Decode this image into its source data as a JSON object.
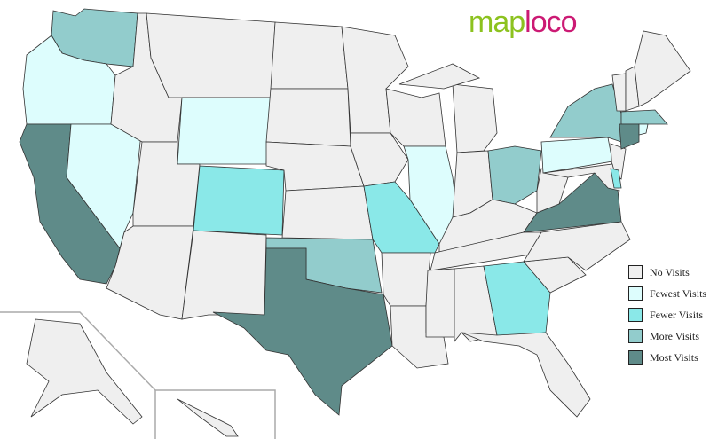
{
  "logo": {
    "part1": "map",
    "part2": "loco"
  },
  "colors": {
    "none": "#efefef",
    "fewest": "#ddfdfd",
    "fewer": "#8ae8e8",
    "more": "#92cccc",
    "most": "#5f8b89"
  },
  "legend": [
    {
      "label": "No Visits",
      "level": "none"
    },
    {
      "label": "Fewest Visits",
      "level": "fewest"
    },
    {
      "label": "Fewer Visits",
      "level": "fewer"
    },
    {
      "label": "More Visits",
      "level": "more"
    },
    {
      "label": "Most Visits",
      "level": "most"
    }
  ],
  "states": {
    "WA": "more",
    "OR": "fewest",
    "CA": "most",
    "NV": "fewest",
    "ID": "none",
    "MT": "none",
    "WY": "fewest",
    "UT": "none",
    "AZ": "none",
    "CO": "fewer",
    "NM": "none",
    "ND": "none",
    "SD": "none",
    "NE": "none",
    "KS": "none",
    "OK": "more",
    "TX": "most",
    "MN": "none",
    "IA": "none",
    "MO": "fewer",
    "AR": "none",
    "LA": "none",
    "WI": "none",
    "IL": "fewest",
    "MI": "none",
    "MIU": "none",
    "IN": "none",
    "OH": "more",
    "KY": "none",
    "TN": "none",
    "MS": "none",
    "AL": "none",
    "GA": "fewer",
    "FL": "none",
    "SC": "none",
    "NC": "none",
    "VA": "most",
    "WV": "none",
    "PA": "fewest",
    "NY": "more",
    "NJ": "none",
    "MD": "none",
    "DE": "fewer",
    "VT": "none",
    "NH": "none",
    "ME": "none",
    "MA": "more",
    "CT": "most",
    "RI": "fewest",
    "AK": "none",
    "HI": "none"
  }
}
